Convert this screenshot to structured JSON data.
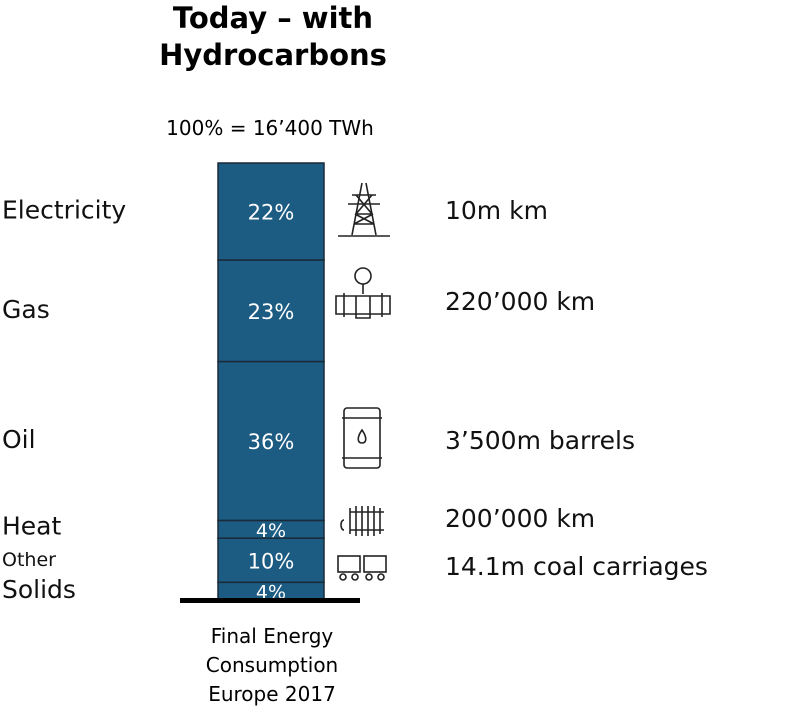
{
  "chart_data": {
    "type": "stacked_column",
    "title": "Today – with Hydrocarbons",
    "subtitle": "100% = 16’400 TWh",
    "footer": "Final Energy Consumption Europe 2017",
    "color": "#1c5b82",
    "categories": [
      "Electricity",
      "Gas",
      "Oil",
      "Heat",
      "Other",
      "Solids"
    ],
    "values": [
      22,
      23,
      36,
      4,
      10,
      4
    ],
    "value_labels": [
      "22%",
      "23%",
      "36%",
      "4%",
      "10%",
      "4%"
    ],
    "annotations": [
      "10m km",
      "220’000 km",
      "3’500m barrels",
      "200’000 km",
      "14.1m coal carriages"
    ]
  }
}
